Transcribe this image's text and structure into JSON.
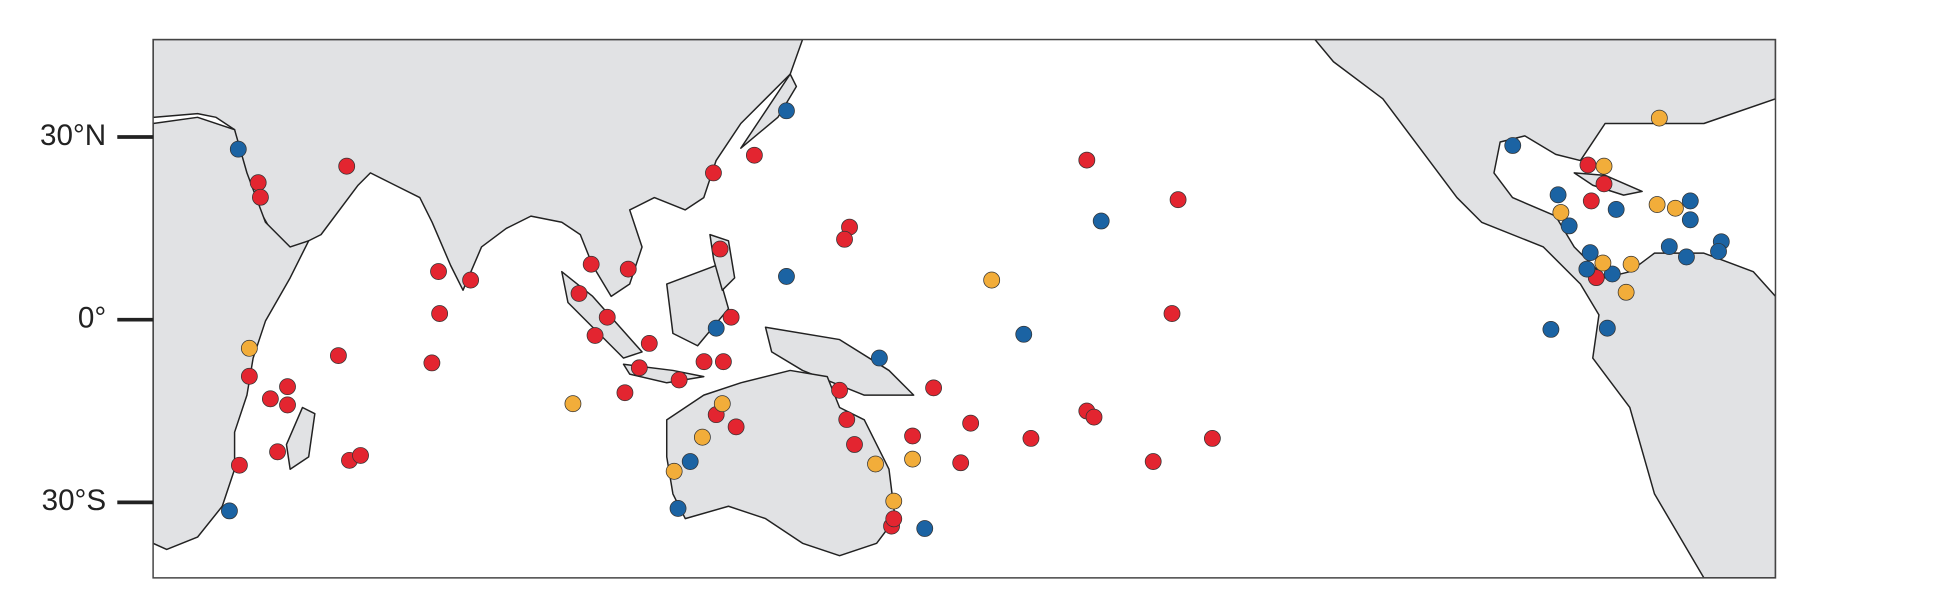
{
  "chart_data": {
    "type": "scatter",
    "xlim": [
      20,
      313.3
    ],
    "ylim": [
      -42.4,
      46
    ],
    "yticks": [
      {
        "value": 30,
        "label": "30°N"
      },
      {
        "value": 0,
        "label": "0°"
      },
      {
        "value": -30,
        "label": "30°S"
      }
    ],
    "series": [
      {
        "color": "#e32530",
        "x": [
          39.0,
          39.4,
          55.0,
          71.6,
          71.8,
          77.4,
          37.4,
          41.2,
          44.3,
          44.3,
          53.5,
          70.4,
          42.5,
          55.5,
          57.5,
          35.6,
          99.2,
          105.9,
          97.0,
          102.1,
          99.9,
          109.7,
          107.9,
          105.3,
          115.1,
          119.6,
          123.1,
          122.5,
          124.5,
          121.3,
          128.7,
          145.9,
          145.0,
          121.8,
          125.4,
          145.4,
          144.1,
          146.8,
          161.1,
          167.8,
          157.3,
          166.0,
          178.7,
          188.8,
          190.1,
          200.8,
          211.5,
          204.2,
          205.3,
          188.8,
          153.5,
          153.9,
          279.4,
          282.3,
          280.0,
          280.9
        ],
        "y": [
          22.5,
          20.1,
          25.2,
          7.9,
          1.0,
          6.5,
          -9.3,
          -13.0,
          -11.0,
          -14.0,
          -5.9,
          -7.1,
          -21.7,
          -23.1,
          -22.3,
          -23.9,
          9.1,
          8.3,
          4.3,
          0.4,
          -2.6,
          -3.9,
          -7.9,
          -12.0,
          -9.9,
          -6.9,
          -6.9,
          11.6,
          0.4,
          24.1,
          27.0,
          15.2,
          13.2,
          -15.6,
          -17.6,
          -16.4,
          -11.6,
          -20.5,
          -11.2,
          -17.0,
          -19.1,
          -23.5,
          -19.5,
          -15.0,
          -16.0,
          -23.3,
          -19.5,
          1.0,
          19.7,
          26.2,
          -33.9,
          -32.7,
          25.4,
          22.3,
          19.5,
          6.9
        ]
      },
      {
        "color": "#1b63a3",
        "x": [
          35.4,
          134.5,
          134.5,
          121.8,
          151.3,
          177.4,
          191.4,
          117.1,
          114.9,
          159.5,
          33.8,
          265.8,
          274.0,
          276.0,
          284.5,
          279.8,
          279.2,
          283.8,
          272.7,
          282.9,
          297.9,
          297.9,
          294.1,
          297.2,
          303.5,
          303.0
        ],
        "y": [
          28.0,
          34.3,
          7.1,
          -1.4,
          -6.3,
          -2.4,
          16.2,
          -23.3,
          -31.0,
          -34.3,
          -31.4,
          28.6,
          20.5,
          15.4,
          18.1,
          11.0,
          8.3,
          7.5,
          -1.6,
          -1.4,
          19.5,
          16.4,
          12.0,
          10.3,
          12.8,
          11.2
        ]
      },
      {
        "color": "#f2ad3a",
        "x": [
          292.3,
          282.3,
          274.5,
          291.9,
          295.2,
          282.1,
          287.2,
          286.3,
          171.6,
          150.6,
          157.3,
          153.9,
          37.4,
          95.9,
          122.9,
          119.3,
          114.2
        ],
        "y": [
          33.1,
          25.2,
          17.6,
          18.9,
          18.3,
          9.3,
          9.1,
          4.5,
          6.5,
          -23.7,
          -22.9,
          -29.8,
          -4.7,
          -13.8,
          -13.8,
          -19.3,
          -24.9
        ]
      }
    ]
  }
}
